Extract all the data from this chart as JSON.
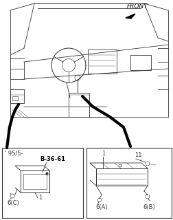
{
  "bg_color": "#ffffff",
  "line_color": "#333333",
  "lw_main": 0.6,
  "front_label": "FRONT",
  "left_box_label": "' 95/5-",
  "part_label_bold": "B-36-61",
  "label_1": "1",
  "label_6C": "6(C)",
  "label_6A": "6(A)",
  "label_6B": "6(B)",
  "label_11": "11",
  "label_1b": "1",
  "callout_lw": 3.0
}
